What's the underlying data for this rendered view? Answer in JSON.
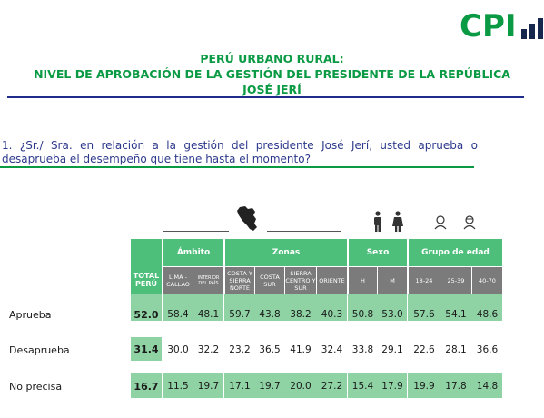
{
  "brand": {
    "logo_text": "CPI",
    "logo_color": "#0a9a44",
    "bars_color": "#17284f"
  },
  "header": {
    "line1": "PERÚ URBANO RURAL:",
    "line2": "NIVEL DE APROBACIÓN DE LA GESTIÓN DEL PRESIDENTE DE LA REPÚBLICA",
    "line3": "JOSÉ JERÍ"
  },
  "question": "1. ¿Sr./ Sra. en relación a la gestión del presidente José Jerí, usted aprueba o desaprueba el desempeño que tiene  hasta el momento?",
  "icons": [
    "peru-map-icon",
    "male-person-icon",
    "female-person-icon",
    "young-person-icon",
    "adult-person-icon",
    "senior-person-icon"
  ],
  "table": {
    "total_header": "TOTAL PERÚ",
    "groups": [
      {
        "title": "Ámbito",
        "subs": [
          "LIMA - CALLAO",
          "INTERIOR DEL PAÍS"
        ]
      },
      {
        "title": "Zonas",
        "subs": [
          "COSTA Y SIERRA NORTE",
          "COSTA SUR",
          "SIERRA CENTRO Y SUR",
          "ORIENTE"
        ]
      },
      {
        "title": "Sexo",
        "subs": [
          "H",
          "M"
        ]
      },
      {
        "title": "Grupo de edad",
        "subs": [
          "18-24",
          "25-39",
          "40-70"
        ]
      }
    ],
    "rows": [
      {
        "label": "Aprueba",
        "total": "52.0",
        "values": [
          "58.4",
          "48.1",
          "59.7",
          "43.8",
          "38.2",
          "40.3",
          "50.8",
          "53.0",
          "57.6",
          "54.1",
          "48.6"
        ]
      },
      {
        "label": "Desaprueba",
        "total": "31.4",
        "values": [
          "30.0",
          "32.2",
          "23.2",
          "36.5",
          "41.9",
          "32.4",
          "33.8",
          "29.1",
          "22.6",
          "28.1",
          "36.6"
        ]
      },
      {
        "label": "No precisa",
        "total": "16.7",
        "values": [
          "11.5",
          "19.7",
          "17.1",
          "19.7",
          "20.0",
          "27.2",
          "15.4",
          "17.9",
          "19.9",
          "17.8",
          "14.8"
        ]
      }
    ]
  },
  "colors": {
    "header_green": "#4dbf7a",
    "sub_gray": "#7b7b7b",
    "body_green": "#8fd3a5",
    "title_green": "#0a9a44",
    "question_blue": "#2d3a8c"
  }
}
